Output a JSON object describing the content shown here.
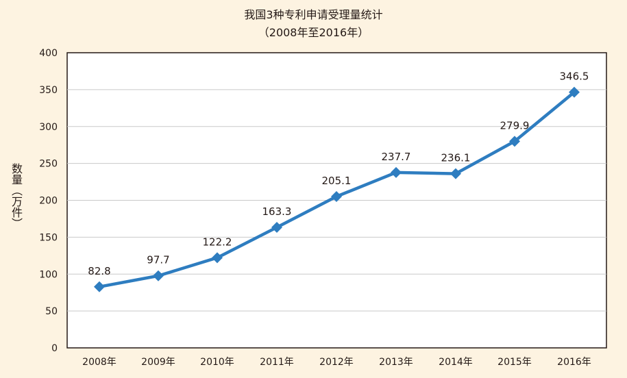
{
  "chart_data": {
    "type": "line",
    "title": "我国3种专利申请受理量统计",
    "subtitle": "（2008年至2016年）",
    "ylabel": "数量（万件）",
    "xlabel": "",
    "categories": [
      "2008年",
      "2009年",
      "2010年",
      "2011年",
      "2012年",
      "2013年",
      "2014年",
      "2015年",
      "2016年"
    ],
    "series": [
      {
        "values": [
          82.8,
          97.7,
          122.2,
          163.3,
          205.1,
          237.7,
          236.1,
          279.9,
          346.5
        ]
      }
    ],
    "data_labels": [
      "82.8",
      "97.7",
      "122.2",
      "163.3",
      "205.1",
      "237.7",
      "236.1",
      "279.9",
      "346.5"
    ],
    "ylim": [
      0,
      400
    ],
    "yticks": [
      0,
      50,
      100,
      150,
      200,
      250,
      300,
      350,
      400
    ],
    "grid": true,
    "legend": "none",
    "colors": {
      "line": "#2e7dc0",
      "background": "#fdf3e1",
      "plot_background": "#ffffff",
      "grid": "#c9c9c9",
      "frame": "#231815"
    }
  }
}
